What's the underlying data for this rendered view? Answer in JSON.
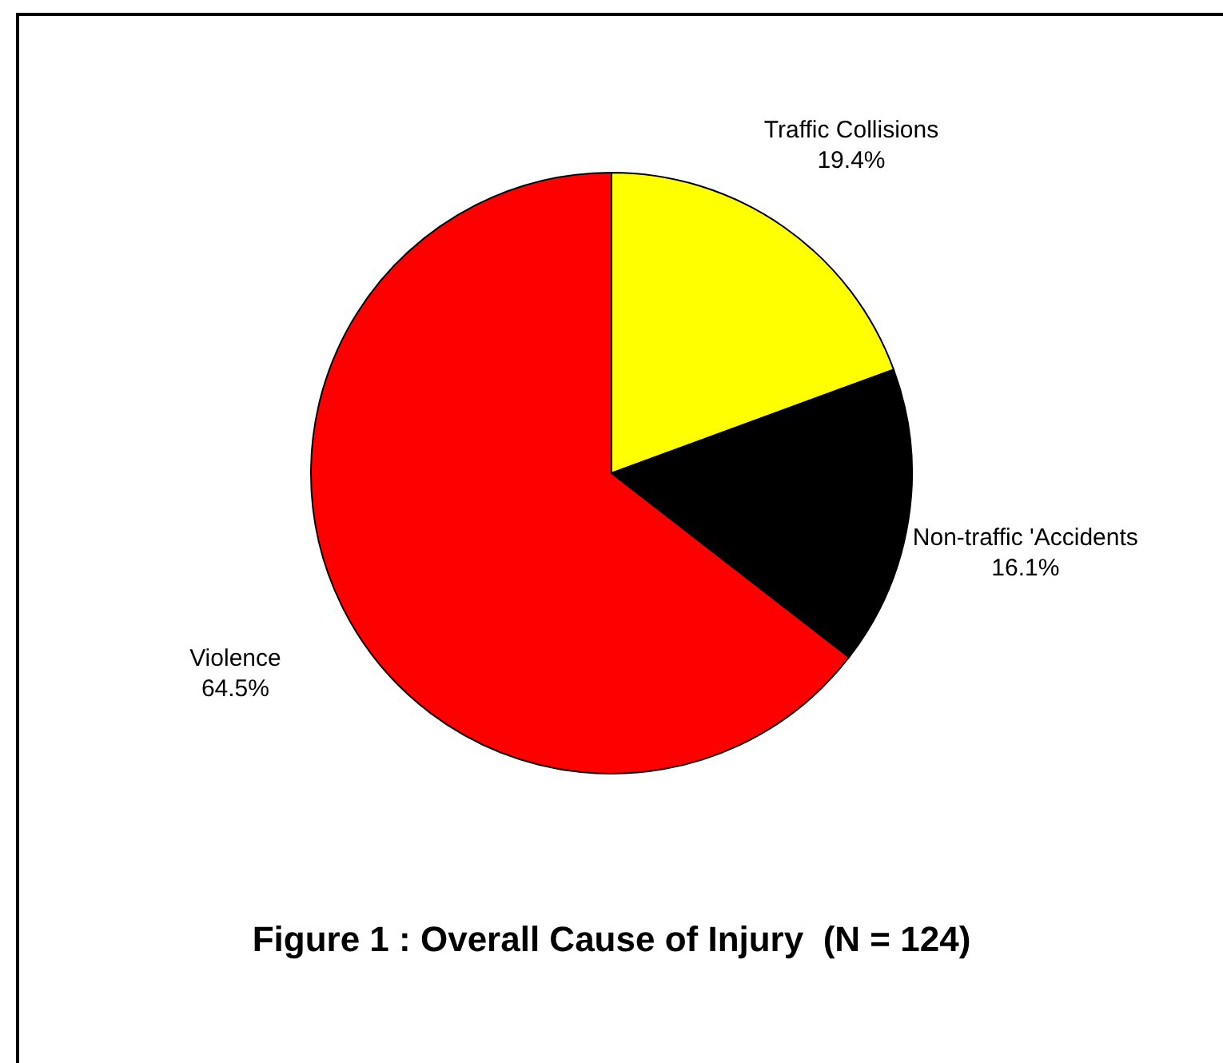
{
  "chart_data": {
    "type": "pie",
    "title": "Figure 1 : Overall Cause of Injury  (N = 124)",
    "categories": [
      "Traffic Collisions",
      "Non-traffic 'Accidents",
      "Violence"
    ],
    "values": [
      19.4,
      16.1,
      64.5
    ],
    "colors": [
      "#ffff00",
      "#000000",
      "#ff0000"
    ],
    "value_labels": [
      "19.4%",
      "16.1%",
      "64.5%"
    ]
  }
}
